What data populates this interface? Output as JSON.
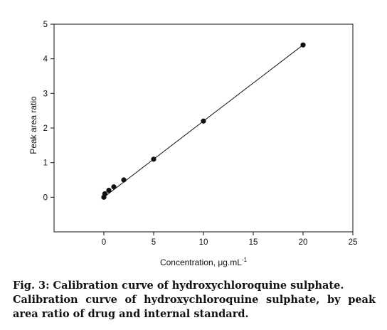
{
  "chart_data": {
    "type": "scatter",
    "title": "",
    "xlabel": "Concentration, μg.mL",
    "xlabel_superscript": "-1",
    "ylabel": "Peak area ratio",
    "xlim": [
      -5,
      25
    ],
    "ylim": [
      -1,
      5
    ],
    "xticks": [
      0,
      5,
      10,
      15,
      20,
      25
    ],
    "yticks": [
      0,
      1,
      2,
      3,
      4,
      5
    ],
    "grid": false,
    "legend": "none",
    "series": [
      {
        "x": [
          0,
          0.1,
          0.5,
          1,
          2,
          5,
          10,
          20
        ],
        "y": [
          0.0,
          0.1,
          0.2,
          0.3,
          0.5,
          1.1,
          2.2,
          4.4
        ],
        "marker": "filled-circle",
        "color": "#111111"
      }
    ],
    "fit_line": {
      "x": [
        0,
        20
      ],
      "y": [
        0.0,
        4.4
      ],
      "color": "#111111"
    }
  },
  "caption": {
    "fig_label": "Fig. 3: Calibration curve of hydroxychloroquine sulphate.",
    "description": "Calibration curve of hydroxychloroquine sulphate, by peak area ratio of drug and internal standard."
  }
}
